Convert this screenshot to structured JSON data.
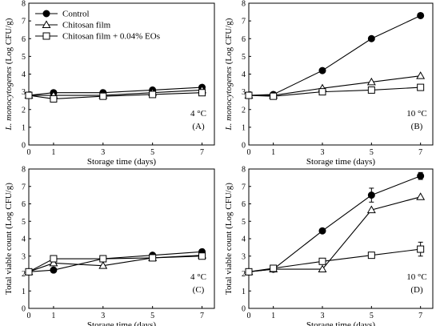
{
  "figure": {
    "legend_labels": [
      "Control",
      "Chitosan film",
      "Chitosan film + 0.04% EOs"
    ],
    "colors": {
      "line": "#000000",
      "filled_marker": "#000000",
      "open_marker": "#ffffff"
    }
  },
  "chart_data": [
    {
      "type": "line",
      "xlabel": "Storage time (days)",
      "ylabel": "L. monocytogenes (Log CFU/g)",
      "temperature": "4 °C",
      "panel": "(A)",
      "xlim": [
        0,
        7.5
      ],
      "ylim": [
        0,
        8
      ],
      "xticks": [
        0,
        1,
        3,
        5,
        7
      ],
      "yticks": [
        0,
        1,
        2,
        3,
        4,
        5,
        6,
        7,
        8
      ],
      "legend": "top-left",
      "x": [
        0,
        1,
        3,
        5,
        7
      ],
      "series": [
        {
          "name": "Control",
          "marker": "filled-circle",
          "values": [
            2.8,
            2.95,
            2.95,
            3.1,
            3.25
          ]
        },
        {
          "name": "Chitosan film",
          "marker": "open-triangle",
          "values": [
            2.8,
            2.8,
            2.8,
            2.95,
            3.1
          ]
        },
        {
          "name": "Chitosan film + 0.04% EOs",
          "marker": "open-square",
          "values": [
            2.8,
            2.6,
            2.75,
            2.85,
            2.95
          ]
        }
      ]
    },
    {
      "type": "line",
      "xlabel": "Storage time (days)",
      "ylabel": "L. monocytogenes (Log CFU/g)",
      "temperature": "10 °C",
      "panel": "(B)",
      "xlim": [
        0,
        7.5
      ],
      "ylim": [
        0,
        8
      ],
      "xticks": [
        0,
        1,
        3,
        5,
        7
      ],
      "yticks": [
        0,
        1,
        2,
        3,
        4,
        5,
        6,
        7,
        8
      ],
      "x": [
        0,
        1,
        3,
        5,
        7
      ],
      "series": [
        {
          "name": "Control",
          "marker": "filled-circle",
          "values": [
            2.8,
            2.85,
            4.2,
            6.0,
            7.3
          ]
        },
        {
          "name": "Chitosan film",
          "marker": "open-triangle",
          "values": [
            2.8,
            2.8,
            3.2,
            3.55,
            3.9
          ]
        },
        {
          "name": "Chitosan film + 0.04% EOs",
          "marker": "open-square",
          "values": [
            2.8,
            2.75,
            3.0,
            3.1,
            3.25
          ]
        }
      ]
    },
    {
      "type": "line",
      "xlabel": "Storage time (days)",
      "ylabel": "Total viable count (Log CFU/g)",
      "temperature": "4 °C",
      "panel": "(C)",
      "xlim": [
        0,
        7.5
      ],
      "ylim": [
        0,
        8
      ],
      "xticks": [
        0,
        1,
        3,
        5,
        7
      ],
      "yticks": [
        0,
        1,
        2,
        3,
        4,
        5,
        6,
        7,
        8
      ],
      "x": [
        0,
        1,
        3,
        5,
        7
      ],
      "series": [
        {
          "name": "Control",
          "marker": "filled-circle",
          "values": [
            2.1,
            2.2,
            2.85,
            3.05,
            3.25
          ]
        },
        {
          "name": "Chitosan film",
          "marker": "open-triangle",
          "values": [
            2.1,
            2.6,
            2.45,
            2.9,
            3.05
          ]
        },
        {
          "name": "Chitosan film + 0.04% EOs",
          "marker": "open-square",
          "values": [
            2.1,
            2.85,
            2.85,
            2.9,
            3.0
          ]
        }
      ]
    },
    {
      "type": "line",
      "xlabel": "Storage time (days)",
      "ylabel": "Total viable count (Log CFU/g)",
      "temperature": "10 °C",
      "panel": "(D)",
      "xlim": [
        0,
        7.5
      ],
      "ylim": [
        0,
        8
      ],
      "xticks": [
        0,
        1,
        3,
        5,
        7
      ],
      "yticks": [
        0,
        1,
        2,
        3,
        4,
        5,
        6,
        7,
        8
      ],
      "x": [
        0,
        1,
        3,
        5,
        7
      ],
      "series": [
        {
          "name": "Control",
          "marker": "filled-circle",
          "values": [
            2.1,
            2.25,
            4.45,
            6.5,
            7.6
          ],
          "errors": [
            0,
            0,
            0,
            0.4,
            0.2
          ]
        },
        {
          "name": "Chitosan film",
          "marker": "open-triangle",
          "values": [
            2.1,
            2.25,
            2.25,
            5.65,
            6.4
          ],
          "errors": [
            0,
            0,
            0,
            0,
            0
          ]
        },
        {
          "name": "Chitosan film + 0.04% EOs",
          "marker": "open-square",
          "values": [
            2.1,
            2.3,
            2.7,
            3.05,
            3.4
          ],
          "errors": [
            0,
            0,
            0,
            0,
            0.4
          ]
        }
      ]
    }
  ]
}
